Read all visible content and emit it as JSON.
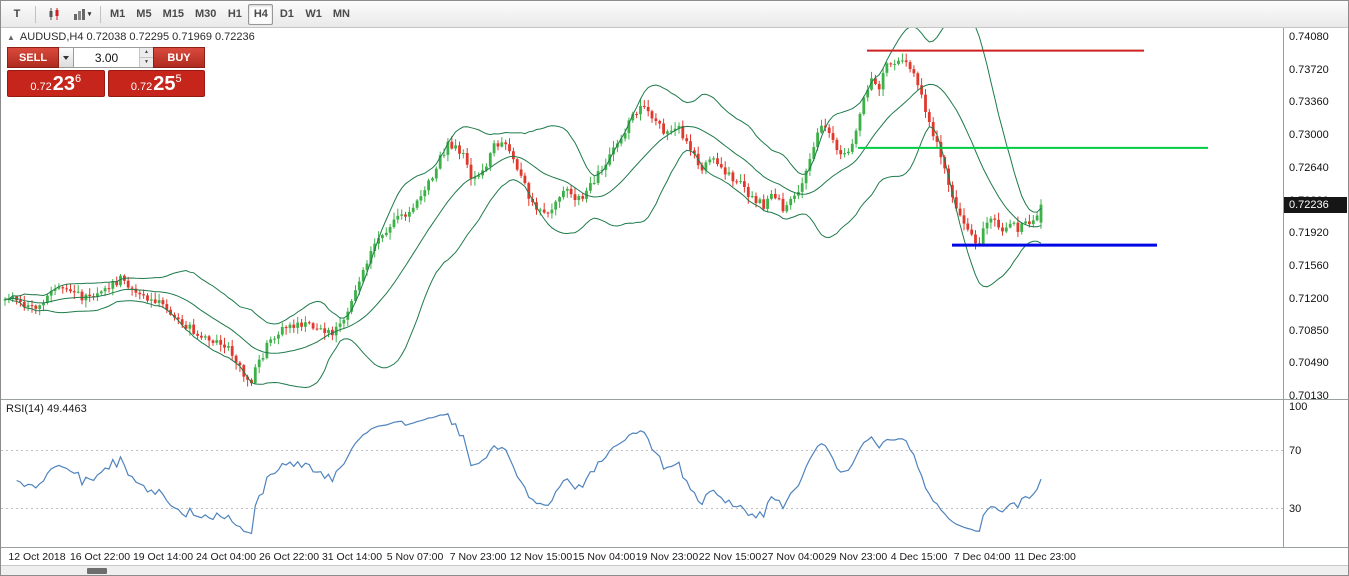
{
  "toolbar": {
    "partial_icon_label": "T",
    "timeframes": [
      "M1",
      "M5",
      "M15",
      "M30",
      "H1",
      "H4",
      "D1",
      "W1",
      "MN"
    ],
    "active_timeframe": "H4"
  },
  "chart": {
    "symbol_line": "AUDUSD,H4 0.72038 0.72295 0.71969 0.72236",
    "current_price": "0.72236",
    "trade_panel": {
      "sell_label": "SELL",
      "buy_label": "BUY",
      "lot_size": "3.00",
      "bid": {
        "prefix": "0.72",
        "big": "23",
        "sup": "6"
      },
      "ask": {
        "prefix": "0.72",
        "big": "25",
        "sup": "5"
      }
    }
  },
  "rsi_panel": {
    "label": "RSI(14) 49.4463",
    "ticks": [
      "100",
      "70",
      "30"
    ]
  },
  "colors": {
    "candle_up": "#3cb148",
    "candle_down": "#e0382c",
    "bollinger": "#1e7a4a",
    "rsi_line": "#4f83bd",
    "hline_red": "#cf2020",
    "hline_green": "#00cc44",
    "hline_blue": "#0008e6",
    "price_badge_bg": "#161616",
    "level_line": "#c0c0c0"
  },
  "chart_data": {
    "type": "candlestick",
    "symbol": "AUDUSD",
    "timeframe": "H4",
    "title": "AUDUSD,H4",
    "ohlc_display": {
      "open": 0.72038,
      "high": 0.72295,
      "low": 0.71969,
      "close": 0.72236
    },
    "price_ticks": [
      "0.74080",
      "0.73720",
      "0.73360",
      "0.73000",
      "0.72640",
      "0.72280",
      "0.71920",
      "0.71560",
      "0.71200",
      "0.70850",
      "0.70490",
      "0.70130"
    ],
    "time_labels": [
      "12 Oct 2018",
      "16 Oct 22:00",
      "19 Oct 14:00",
      "24 Oct 04:00",
      "26 Oct 22:00",
      "31 Oct 14:00",
      "5 Nov 07:00",
      "7 Nov 23:00",
      "12 Nov 15:00",
      "15 Nov 04:00",
      "19 Nov 23:00",
      "22 Nov 15:00",
      "27 Nov 04:00",
      "29 Nov 23:00",
      "4 Dec 15:00",
      "7 Dec 04:00",
      "11 Dec 23:00"
    ],
    "hlines": [
      {
        "price": 0.7393,
        "x1": 0.675,
        "x2": 0.891,
        "color_key": "hline_red",
        "width": 2
      },
      {
        "price": 0.7286,
        "x1": 0.668,
        "x2": 0.941,
        "color_key": "hline_green",
        "width": 2
      },
      {
        "price": 0.7179,
        "x1": 0.741,
        "x2": 0.901,
        "color_key": "hline_blue",
        "width": 3
      }
    ],
    "indicators": {
      "bollinger": {
        "period": 20,
        "deviation": 2
      },
      "rsi": {
        "period": 14,
        "value": 49.4463,
        "levels": [
          30,
          70
        ]
      }
    },
    "last_candle": {
      "o": 0.72038,
      "h": 0.72295,
      "l": 0.71969,
      "c": 0.72236
    },
    "anchors": [
      [
        0.0,
        0.7122
      ],
      [
        0.015,
        0.7115
      ],
      [
        0.03,
        0.7109
      ],
      [
        0.045,
        0.7128
      ],
      [
        0.058,
        0.7136
      ],
      [
        0.072,
        0.7124
      ],
      [
        0.085,
        0.7117
      ],
      [
        0.1,
        0.7133
      ],
      [
        0.112,
        0.7142
      ],
      [
        0.125,
        0.713
      ],
      [
        0.14,
        0.7118
      ],
      [
        0.155,
        0.7112
      ],
      [
        0.17,
        0.7095
      ],
      [
        0.185,
        0.7082
      ],
      [
        0.2,
        0.7075
      ],
      [
        0.215,
        0.7068
      ],
      [
        0.228,
        0.7042
      ],
      [
        0.237,
        0.7028
      ],
      [
        0.245,
        0.705
      ],
      [
        0.255,
        0.7072
      ],
      [
        0.27,
        0.7088
      ],
      [
        0.285,
        0.7092
      ],
      [
        0.3,
        0.709
      ],
      [
        0.315,
        0.7083
      ],
      [
        0.328,
        0.71
      ],
      [
        0.34,
        0.7135
      ],
      [
        0.352,
        0.717
      ],
      [
        0.365,
        0.719
      ],
      [
        0.378,
        0.7208
      ],
      [
        0.392,
        0.7216
      ],
      [
        0.405,
        0.7238
      ],
      [
        0.418,
        0.727
      ],
      [
        0.428,
        0.729
      ],
      [
        0.44,
        0.7283
      ],
      [
        0.452,
        0.7248
      ],
      [
        0.462,
        0.7262
      ],
      [
        0.472,
        0.7288
      ],
      [
        0.482,
        0.7295
      ],
      [
        0.495,
        0.7262
      ],
      [
        0.508,
        0.7228
      ],
      [
        0.518,
        0.7212
      ],
      [
        0.53,
        0.7224
      ],
      [
        0.542,
        0.724
      ],
      [
        0.555,
        0.7228
      ],
      [
        0.568,
        0.7248
      ],
      [
        0.58,
        0.7272
      ],
      [
        0.592,
        0.7295
      ],
      [
        0.605,
        0.7318
      ],
      [
        0.615,
        0.7332
      ],
      [
        0.625,
        0.732
      ],
      [
        0.638,
        0.7302
      ],
      [
        0.648,
        0.7312
      ],
      [
        0.66,
        0.7285
      ],
      [
        0.672,
        0.7264
      ],
      [
        0.685,
        0.7272
      ],
      [
        0.698,
        0.7258
      ],
      [
        0.71,
        0.7245
      ],
      [
        0.722,
        0.723
      ],
      [
        0.733,
        0.7222
      ],
      [
        0.742,
        0.7235
      ],
      [
        0.752,
        0.7218
      ],
      [
        0.762,
        0.723
      ],
      [
        0.772,
        0.7252
      ],
      [
        0.782,
        0.7296
      ],
      [
        0.79,
        0.731
      ],
      [
        0.8,
        0.7292
      ],
      [
        0.81,
        0.7275
      ],
      [
        0.818,
        0.7292
      ],
      [
        0.827,
        0.733
      ],
      [
        0.836,
        0.7366
      ],
      [
        0.844,
        0.7354
      ],
      [
        0.852,
        0.7385
      ],
      [
        0.86,
        0.7375
      ],
      [
        0.868,
        0.739
      ],
      [
        0.876,
        0.7368
      ],
      [
        0.884,
        0.7345
      ],
      [
        0.892,
        0.7315
      ],
      [
        0.9,
        0.7288
      ],
      [
        0.908,
        0.7258
      ],
      [
        0.916,
        0.7228
      ],
      [
        0.925,
        0.7205
      ],
      [
        0.933,
        0.719
      ],
      [
        0.94,
        0.718
      ],
      [
        0.947,
        0.7202
      ],
      [
        0.955,
        0.7208
      ],
      [
        0.962,
        0.7192
      ],
      [
        0.97,
        0.7206
      ],
      [
        0.977,
        0.7196
      ],
      [
        0.984,
        0.7208
      ],
      [
        0.991,
        0.72
      ],
      [
        1.0,
        0.7224
      ]
    ]
  }
}
